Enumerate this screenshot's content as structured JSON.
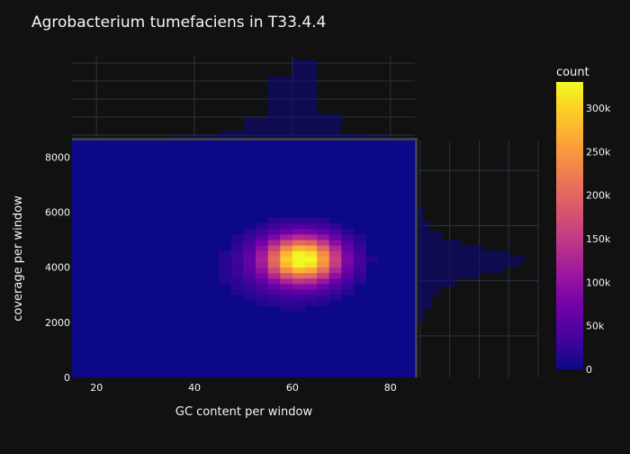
{
  "chart_data": {
    "type": "heatmap",
    "title": "Agrobacterium tumefaciens in T33.4.4",
    "xlabel": "GC content per window",
    "ylabel": "coverage per window",
    "xlim": [
      15,
      85
    ],
    "ylim": [
      0,
      8600
    ],
    "x_ticks": [
      20,
      40,
      60,
      80
    ],
    "y_ticks": [
      0,
      2000,
      4000,
      6000,
      8000
    ],
    "x_tick_labels": [
      "20",
      "40",
      "60",
      "80"
    ],
    "y_tick_labels": [
      "0",
      "2000",
      "4000",
      "6000",
      "8000"
    ],
    "x_bin_width": 2.5,
    "y_bin_width": 200,
    "peak_center": {
      "gc": 62,
      "coverage": 4300
    },
    "colorscale": "plasma",
    "colorscale_stops": [
      "#0d0887",
      "#46039f",
      "#7201a8",
      "#9c179e",
      "#bd3786",
      "#d8576b",
      "#ed7953",
      "#fb9f3a",
      "#fdca26",
      "#f0f921"
    ],
    "colorbar": {
      "title": "count",
      "range": [
        0,
        330000
      ],
      "ticks": [
        0,
        50000,
        100000,
        150000,
        200000,
        250000,
        300000
      ],
      "tick_labels": [
        "0",
        "50k",
        "100k",
        "150k",
        "200k",
        "250k",
        "300k"
      ]
    },
    "marginal_x": {
      "type": "histogram",
      "bins": [
        {
          "x0": 35,
          "x1": 40,
          "count": 0.01
        },
        {
          "x0": 40,
          "x1": 45,
          "count": 0.02
        },
        {
          "x0": 45,
          "x1": 50,
          "count": 0.08
        },
        {
          "x0": 50,
          "x1": 55,
          "count": 0.25
        },
        {
          "x0": 55,
          "x1": 60,
          "count": 0.78
        },
        {
          "x0": 60,
          "x1": 65,
          "count": 1.0
        },
        {
          "x0": 65,
          "x1": 70,
          "count": 0.3
        },
        {
          "x0": 70,
          "x1": 75,
          "count": 0.04
        },
        {
          "x0": 75,
          "x1": 80,
          "count": 0.02
        }
      ]
    },
    "marginal_y": {
      "type": "histogram",
      "bins": [
        {
          "y0": 2000,
          "y1": 2500,
          "count": 0.05
        },
        {
          "y0": 2500,
          "y1": 3000,
          "count": 0.12
        },
        {
          "y0": 3000,
          "y1": 3300,
          "count": 0.2
        },
        {
          "y0": 3300,
          "y1": 3600,
          "count": 0.35
        },
        {
          "y0": 3600,
          "y1": 3800,
          "count": 0.58
        },
        {
          "y0": 3800,
          "y1": 4000,
          "count": 0.8
        },
        {
          "y0": 4000,
          "y1": 4200,
          "count": 0.95
        },
        {
          "y0": 4200,
          "y1": 4400,
          "count": 1.0
        },
        {
          "y0": 4400,
          "y1": 4600,
          "count": 0.85
        },
        {
          "y0": 4600,
          "y1": 4800,
          "count": 0.6
        },
        {
          "y0": 4800,
          "y1": 5000,
          "count": 0.4
        },
        {
          "y0": 5000,
          "y1": 5300,
          "count": 0.22
        },
        {
          "y0": 5300,
          "y1": 5700,
          "count": 0.1
        },
        {
          "y0": 5700,
          "y1": 6200,
          "count": 0.04
        }
      ]
    }
  }
}
